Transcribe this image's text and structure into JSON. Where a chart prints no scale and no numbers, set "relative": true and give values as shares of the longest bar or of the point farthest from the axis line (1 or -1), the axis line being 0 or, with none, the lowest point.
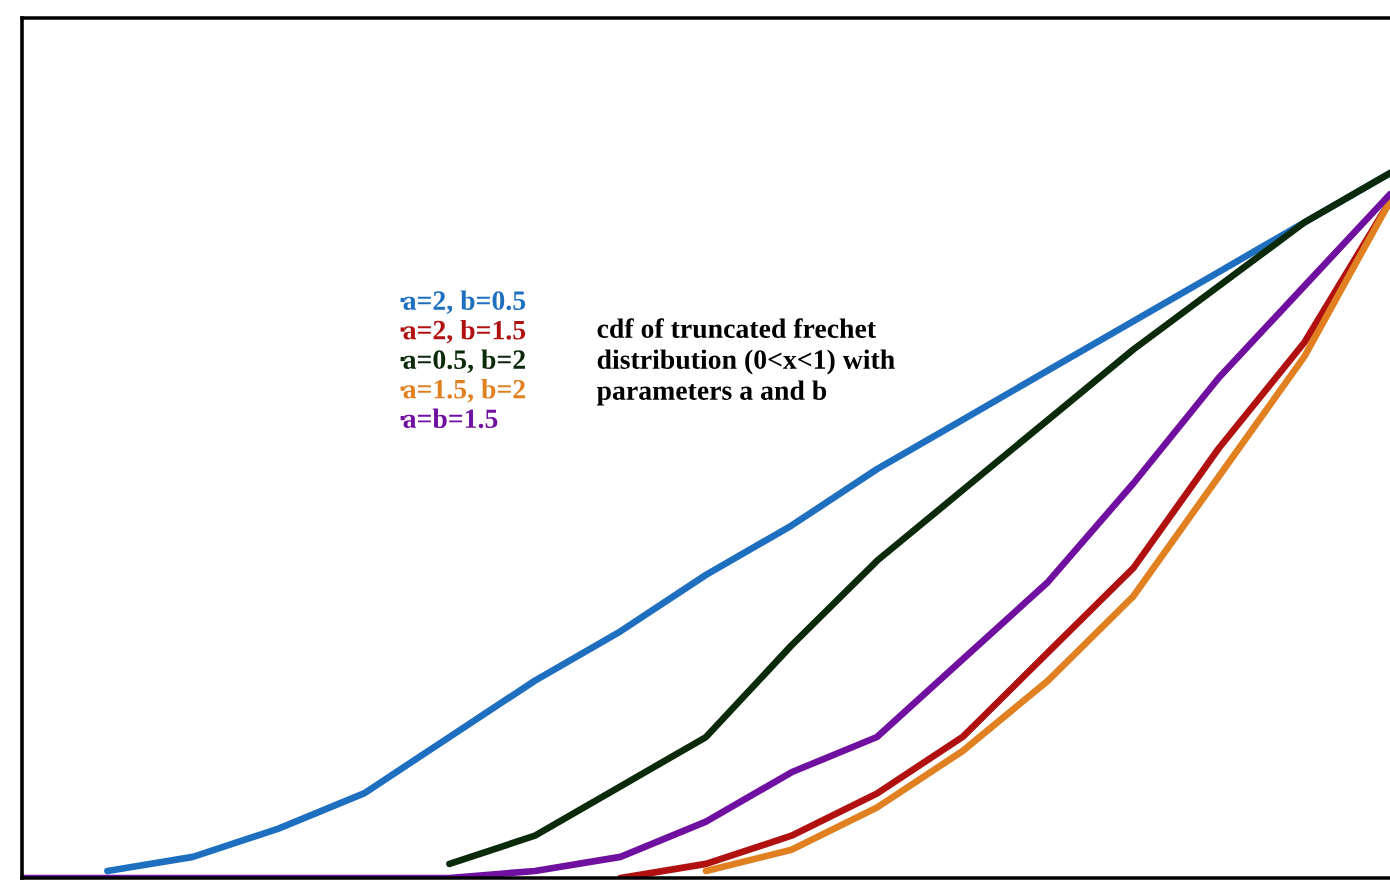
{
  "chart_data": {
    "type": "line",
    "relative": true,
    "categories": [
      null,
      null,
      null,
      null,
      null,
      null,
      null,
      null,
      null,
      null,
      null,
      null,
      null,
      null,
      null,
      null,
      null
    ],
    "series": [
      {
        "name": "a=2, b=0.5",
        "color": "#1f6fc0",
        "values": [
          null,
          0.01,
          0.03,
          0.07,
          0.12,
          0.2,
          0.28,
          0.35,
          0.43,
          0.5,
          0.58,
          0.65,
          0.72,
          0.79,
          0.86,
          0.93,
          1
        ]
      },
      {
        "name": "a=2, b=1.5",
        "color": "#b01010",
        "values": [
          null,
          null,
          null,
          null,
          null,
          null,
          null,
          0,
          0.02,
          0.06,
          0.12,
          0.2,
          0.32,
          0.44,
          0.61,
          0.76,
          0.96
        ]
      },
      {
        "name": "a=0.5, b=2",
        "color": "#0a2a0a",
        "values": [
          null,
          null,
          null,
          null,
          null,
          0.02,
          0.06,
          0.13,
          0.2,
          0.33,
          0.45,
          0.55,
          0.65,
          0.75,
          0.84,
          0.93,
          1
        ]
      },
      {
        "name": "a=1.5, b=2",
        "color": "#e08020",
        "values": [
          null,
          null,
          null,
          null,
          null,
          null,
          null,
          null,
          0.01,
          0.04,
          0.1,
          0.18,
          0.28,
          0.4,
          0.57,
          0.74,
          0.96
        ]
      },
      {
        "name": "a=b=1.5",
        "color": "#7010a0",
        "values": [
          0,
          0,
          0,
          0,
          0,
          0,
          0.01,
          0.03,
          0.08,
          0.15,
          0.2,
          0.31,
          0.42,
          0.56,
          0.71,
          0.84,
          0.97
        ]
      }
    ],
    "legend": "center left",
    "annotations": [
      "cdf of truncated frechet\ndistribution (0<x<1) with\nparameters a and b"
    ]
  }
}
